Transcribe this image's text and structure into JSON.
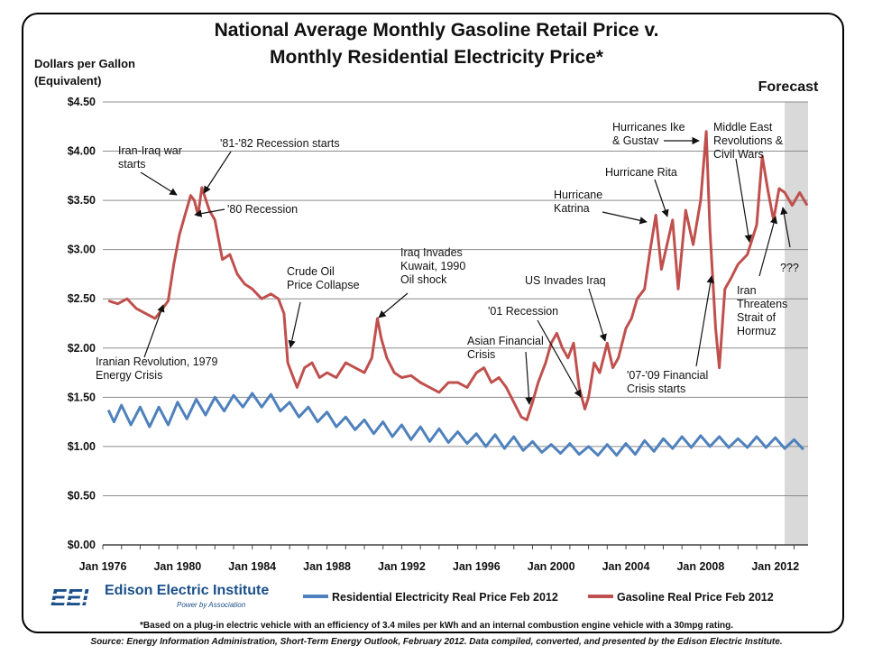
{
  "title_line1": "National Average Monthly Gasoline Retail Price v.",
  "title_line2": "Monthly Residential Electricity Price*",
  "ylabel_line1": "Dollars per Gallon",
  "ylabel_line2": "(Equivalent)",
  "logo": {
    "mark": "EEI",
    "name": "Edison Electric Institute",
    "tagline": "Power by Association"
  },
  "footnote": "*Based on a plug-in electric vehicle with an efficiency of 3.4 miles per kWh and an internal combustion engine vehicle with a 30mpg rating.",
  "source": "Source: Energy Information Administration, Short-Term Energy Outlook, February 2012. Data compiled, converted, and presented by the Edison Electric Institute.",
  "chart_data": {
    "type": "line",
    "xlim": [
      1976,
      2013.75
    ],
    "ylim": [
      0,
      4.5
    ],
    "x_tick_values": [
      1976,
      1980,
      1984,
      1988,
      1992,
      1996,
      2000,
      2004,
      2008,
      2012
    ],
    "x_tick_labels": [
      "Jan 1976",
      "Jan 1980",
      "Jan 1984",
      "Jan 1988",
      "Jan 1992",
      "Jan 1996",
      "Jan 2000",
      "Jan 2004",
      "Jan 2008",
      "Jan 2012"
    ],
    "y_tick_values": [
      0,
      0.5,
      1.0,
      1.5,
      2.0,
      2.5,
      3.0,
      3.5,
      4.0,
      4.5
    ],
    "y_tick_labels": [
      "$0.00",
      "$0.50",
      "$1.00",
      "$1.50",
      "$2.00",
      "$2.50",
      "$3.00",
      "$3.50",
      "$4.00",
      "$4.50"
    ],
    "grid": "horizontal",
    "legend_position": "bottom",
    "forecast": {
      "label": "Forecast",
      "start": 2012.5,
      "end": 2013.75
    },
    "series": [
      {
        "name": "Residential Electricity Real Price Feb 2012",
        "color": "#4f81bd",
        "x": [
          1976.3,
          1976.6,
          1977.0,
          1977.5,
          1978.0,
          1978.5,
          1979.0,
          1979.5,
          1980.0,
          1980.5,
          1981.0,
          1981.5,
          1982.0,
          1982.5,
          1983.0,
          1983.5,
          1984.0,
          1984.5,
          1985.0,
          1985.5,
          1986.0,
          1986.5,
          1987.0,
          1987.5,
          1988.0,
          1988.5,
          1989.0,
          1989.5,
          1990.0,
          1990.5,
          1991.0,
          1991.5,
          1992.0,
          1992.5,
          1993.0,
          1993.5,
          1994.0,
          1994.5,
          1995.0,
          1995.5,
          1996.0,
          1996.5,
          1997.0,
          1997.5,
          1998.0,
          1998.5,
          1999.0,
          1999.5,
          2000.0,
          2000.5,
          2001.0,
          2001.5,
          2002.0,
          2002.5,
          2003.0,
          2003.5,
          2004.0,
          2004.5,
          2005.0,
          2005.5,
          2006.0,
          2006.5,
          2007.0,
          2007.5,
          2008.0,
          2008.5,
          2009.0,
          2009.5,
          2010.0,
          2010.5,
          2011.0,
          2011.5,
          2012.0,
          2012.5,
          2013.0,
          2013.5
        ],
        "y": [
          1.37,
          1.25,
          1.42,
          1.22,
          1.4,
          1.2,
          1.4,
          1.22,
          1.45,
          1.28,
          1.48,
          1.32,
          1.5,
          1.36,
          1.52,
          1.4,
          1.54,
          1.4,
          1.53,
          1.36,
          1.45,
          1.3,
          1.4,
          1.25,
          1.35,
          1.2,
          1.3,
          1.17,
          1.27,
          1.13,
          1.25,
          1.1,
          1.22,
          1.07,
          1.2,
          1.05,
          1.18,
          1.04,
          1.15,
          1.03,
          1.13,
          1.0,
          1.12,
          0.98,
          1.1,
          0.96,
          1.05,
          0.94,
          1.02,
          0.93,
          1.03,
          0.92,
          1.0,
          0.91,
          1.02,
          0.91,
          1.03,
          0.92,
          1.06,
          0.95,
          1.08,
          0.98,
          1.1,
          0.99,
          1.11,
          1.0,
          1.1,
          0.99,
          1.08,
          0.99,
          1.1,
          0.99,
          1.09,
          0.98,
          1.07,
          0.97
        ]
      },
      {
        "name": "Gasoline Real Price Feb 2012",
        "color": "#c0504d",
        "x": [
          1976.3,
          1976.8,
          1977.3,
          1977.8,
          1978.3,
          1978.8,
          1979.2,
          1979.5,
          1979.8,
          1980.1,
          1980.4,
          1980.7,
          1980.9,
          1981.1,
          1981.3,
          1981.7,
          1982.0,
          1982.4,
          1982.8,
          1983.2,
          1983.6,
          1984.0,
          1984.5,
          1985.0,
          1985.4,
          1985.7,
          1985.9,
          1986.1,
          1986.4,
          1986.8,
          1987.2,
          1987.6,
          1988.0,
          1988.5,
          1989.0,
          1989.5,
          1990.0,
          1990.4,
          1990.7,
          1990.9,
          1991.2,
          1991.6,
          1992.0,
          1992.5,
          1993.0,
          1993.5,
          1994.0,
          1994.5,
          1995.0,
          1995.5,
          1996.0,
          1996.4,
          1996.8,
          1997.2,
          1997.6,
          1998.0,
          1998.4,
          1998.7,
          1999.0,
          1999.3,
          1999.7,
          2000.0,
          2000.3,
          2000.6,
          2000.9,
          2001.2,
          2001.5,
          2001.8,
          2002.0,
          2002.3,
          2002.6,
          2003.0,
          2003.3,
          2003.6,
          2004.0,
          2004.3,
          2004.6,
          2005.0,
          2005.3,
          2005.6,
          2005.9,
          2006.2,
          2006.5,
          2006.8,
          2007.2,
          2007.6,
          2008.0,
          2008.3,
          2008.5,
          2008.8,
          2009.0,
          2009.3,
          2009.6,
          2010.0,
          2010.5,
          2011.0,
          2011.3,
          2011.6,
          2011.9,
          2012.2,
          2012.5,
          2012.9,
          2013.3,
          2013.7
        ],
        "y": [
          2.48,
          2.45,
          2.5,
          2.4,
          2.35,
          2.3,
          2.4,
          2.48,
          2.85,
          3.15,
          3.35,
          3.55,
          3.5,
          3.35,
          3.63,
          3.4,
          3.3,
          2.9,
          2.95,
          2.75,
          2.65,
          2.6,
          2.5,
          2.55,
          2.5,
          2.35,
          1.85,
          1.75,
          1.6,
          1.8,
          1.85,
          1.7,
          1.75,
          1.7,
          1.85,
          1.8,
          1.75,
          1.9,
          2.3,
          2.1,
          1.9,
          1.75,
          1.7,
          1.72,
          1.65,
          1.6,
          1.55,
          1.65,
          1.65,
          1.6,
          1.75,
          1.8,
          1.65,
          1.7,
          1.6,
          1.45,
          1.3,
          1.27,
          1.45,
          1.65,
          1.85,
          2.05,
          2.15,
          2.0,
          1.9,
          2.05,
          1.6,
          1.38,
          1.5,
          1.85,
          1.75,
          2.05,
          1.8,
          1.9,
          2.2,
          2.3,
          2.5,
          2.6,
          3.0,
          3.35,
          2.8,
          3.05,
          3.3,
          2.6,
          3.4,
          3.05,
          3.5,
          4.2,
          3.2,
          2.2,
          1.8,
          2.6,
          2.7,
          2.85,
          2.95,
          3.25,
          3.95,
          3.6,
          3.3,
          3.62,
          3.58,
          3.45,
          3.58,
          3.45
        ]
      }
    ],
    "annotations": [
      {
        "text": [
          "Iran-Iraq war",
          "starts"
        ]
      },
      {
        "text": [
          "'81-'82 Recession starts"
        ]
      },
      {
        "text": [
          "'80 Recession"
        ]
      },
      {
        "text": [
          "Iranian Revolution, 1979",
          "Energy Crisis"
        ]
      },
      {
        "text": [
          "Crude Oil",
          "Price Collapse"
        ]
      },
      {
        "text": [
          "Iraq Invades",
          "Kuwait, 1990",
          "Oil shock"
        ]
      },
      {
        "text": [
          "'01 Recession"
        ]
      },
      {
        "text": [
          "Asian Financial",
          "Crisis"
        ]
      },
      {
        "text": [
          "US Invades Iraq"
        ]
      },
      {
        "text": [
          "Hurricane",
          "Katrina"
        ]
      },
      {
        "text": [
          "Hurricane Rita"
        ]
      },
      {
        "text": [
          "Hurricanes Ike",
          "& Gustav"
        ]
      },
      {
        "text": [
          "Middle East",
          "Revolutions &",
          "Civil Wars"
        ]
      },
      {
        "text": [
          "'07-'09 Financial",
          "Crisis starts"
        ]
      },
      {
        "text": [
          "Iran",
          "Threatens",
          "Strait of",
          "Hormuz"
        ]
      },
      {
        "text": [
          "???"
        ]
      }
    ]
  }
}
